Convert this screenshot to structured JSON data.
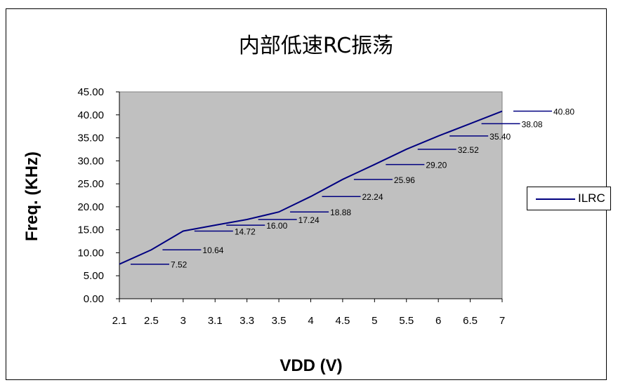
{
  "chart_data": {
    "type": "line",
    "title": "内部低速RC振荡",
    "xlabel": "VDD (V)",
    "ylabel": "Freq. (KHz)",
    "x": [
      "2.1",
      "2.5",
      "3",
      "3.1",
      "3.3",
      "3.5",
      "4",
      "4.5",
      "5",
      "5.5",
      "6",
      "6.5",
      "7"
    ],
    "y_ticks": [
      "0.00",
      "5.00",
      "10.00",
      "15.00",
      "20.00",
      "25.00",
      "30.00",
      "35.00",
      "40.00",
      "45.00"
    ],
    "ylim": [
      0,
      45
    ],
    "series": [
      {
        "name": "ILRC",
        "color": "#000080",
        "values": [
          7.52,
          10.64,
          14.72,
          16.0,
          17.24,
          18.88,
          22.24,
          25.96,
          29.2,
          32.52,
          35.4,
          38.08,
          40.8
        ]
      }
    ],
    "data_labels": [
      "7.52",
      "10.64",
      "14.72",
      "16.00",
      "17.24",
      "18.88",
      "22.24",
      "25.96",
      "29.20",
      "32.52",
      "35.40",
      "38.08",
      "40.80"
    ],
    "plot_background": "#c0c0c0",
    "grid": false,
    "legend_position": "right"
  }
}
